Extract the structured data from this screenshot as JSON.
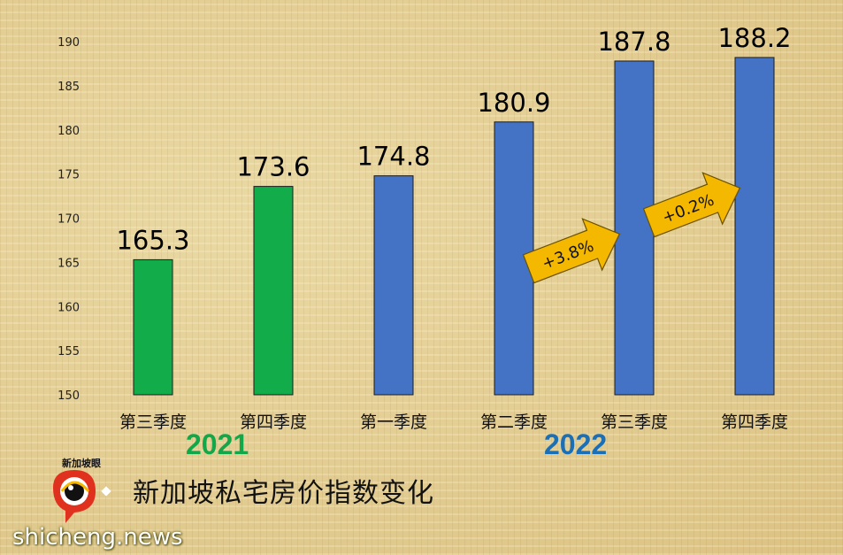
{
  "chart_data": {
    "type": "bar",
    "categories": [
      "第三季度",
      "第四季度",
      "第一季度",
      "第二季度",
      "第三季度",
      "第四季度"
    ],
    "values": [
      165.3,
      173.6,
      174.8,
      180.9,
      187.8,
      188.2
    ],
    "value_labels": [
      "165.3",
      "173.6",
      "174.8",
      "180.9",
      "187.8",
      "188.2"
    ],
    "bar_colors": [
      "#12ad4a",
      "#12ad4a",
      "#4472c4",
      "#4472c4",
      "#4472c4",
      "#4472c4"
    ],
    "year_labels": [
      "2021",
      "2022"
    ],
    "title": "新加坡私宅房价指数变化",
    "ylim": [
      150,
      190
    ],
    "yticks": [
      "150",
      "155",
      "160",
      "165",
      "170",
      "175",
      "180",
      "185",
      "190"
    ],
    "grid": false,
    "annotations": [
      "+3.8%",
      "+0.2%"
    ],
    "arrow_color": "#f5b800"
  },
  "watermark": {
    "logo_text": "新加坡眼",
    "site": "shicheng.news"
  }
}
